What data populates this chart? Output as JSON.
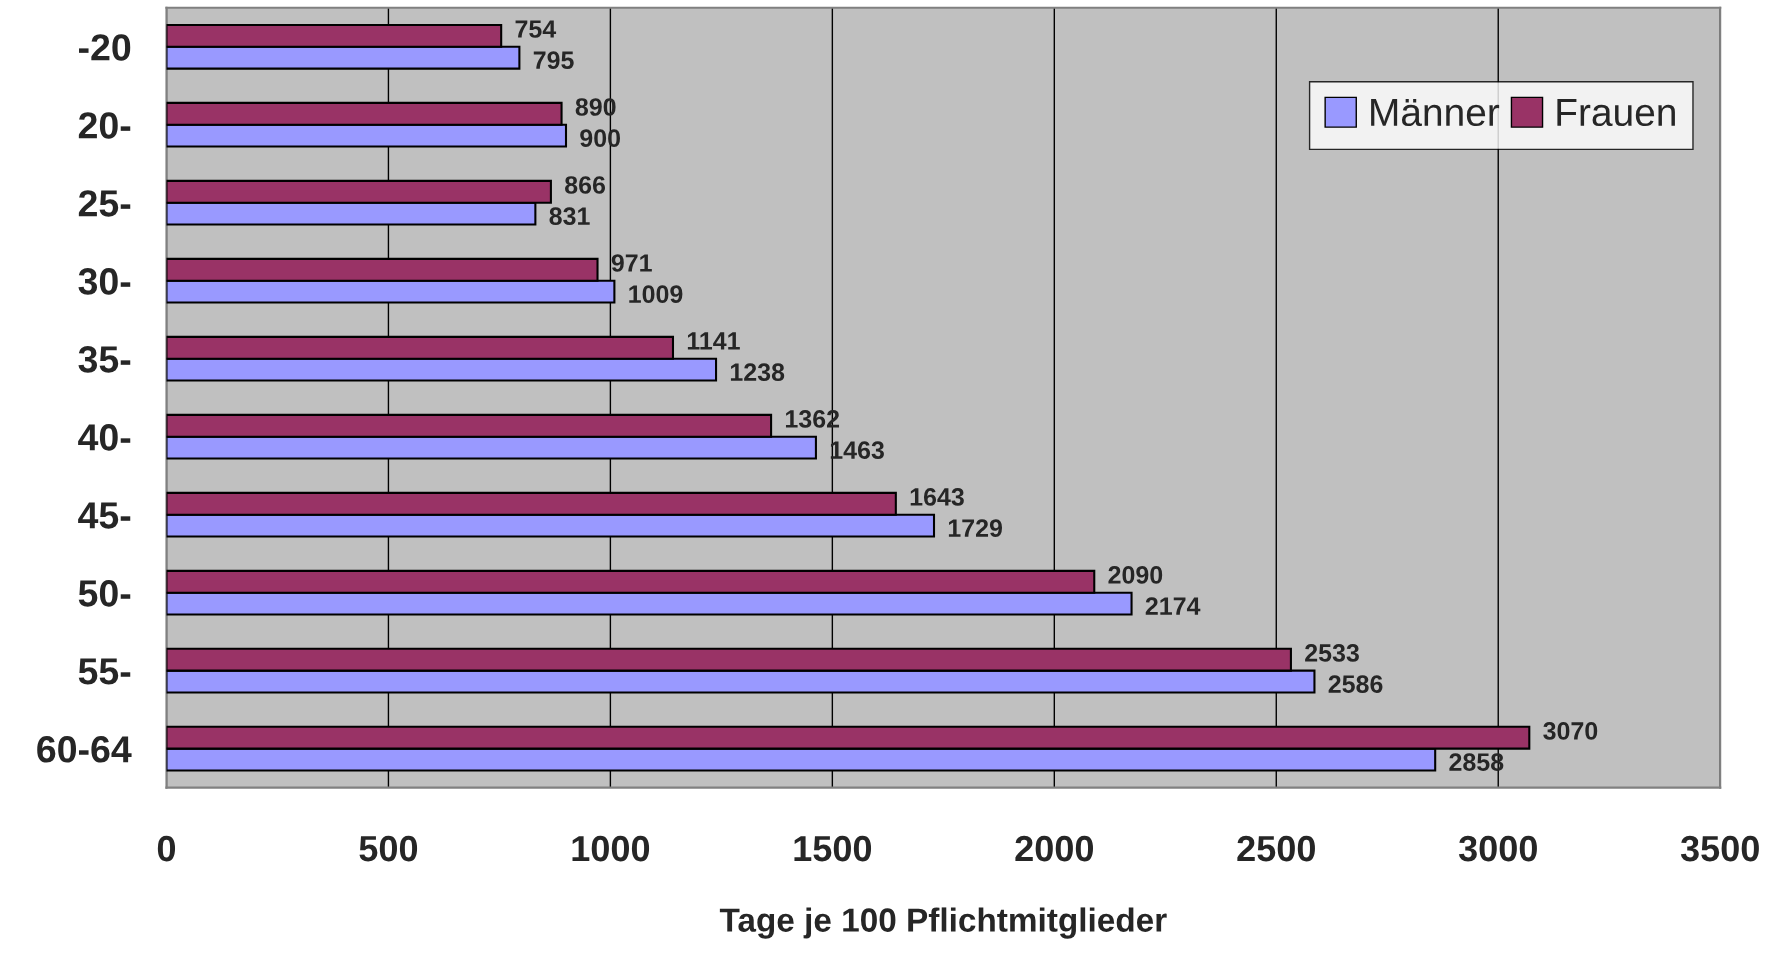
{
  "chart_data": {
    "type": "bar",
    "orientation": "horizontal",
    "xlabel": "Tage je 100 Pflichtmitglieder",
    "categories": [
      "-20",
      "20-",
      "25-",
      "30-",
      "35-",
      "40-",
      "45-",
      "50-",
      "55-",
      "60-64"
    ],
    "series": [
      {
        "name": "Männer",
        "color": "#9999ff",
        "values": [
          795,
          900,
          831,
          1009,
          1238,
          1463,
          1729,
          2174,
          2586,
          2858
        ]
      },
      {
        "name": "Frauen",
        "color": "#993366",
        "values": [
          754,
          890,
          866,
          971,
          1141,
          1362,
          1643,
          2090,
          2533,
          3070
        ]
      }
    ],
    "xlim": [
      0,
      3500
    ],
    "xticks": [
      0,
      500,
      1000,
      1500,
      2000,
      2500,
      3000,
      3500
    ],
    "grid": "x",
    "legend": "top right",
    "data_labels": true
  }
}
